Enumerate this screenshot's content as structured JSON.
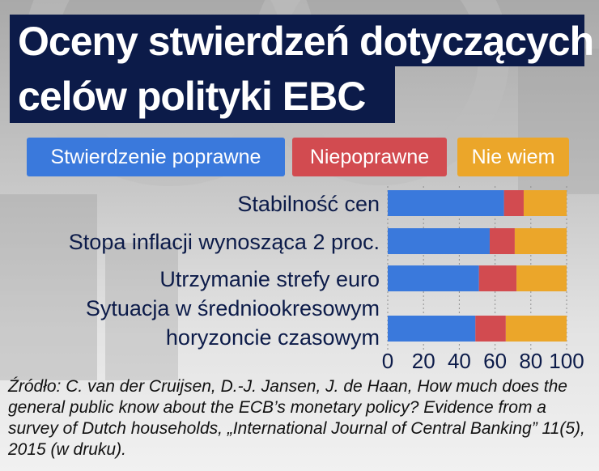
{
  "title": {
    "line1": "Oceny stwierdzeń dotyczących",
    "line2": "celów polityki EBC"
  },
  "colors": {
    "correct": "#3a79dc",
    "incorrect": "#d24b50",
    "dont_know": "#eba62a",
    "title_bg": "#0c1b49",
    "text": "#0c1b49",
    "grid": "#8f8f8f"
  },
  "legend": [
    {
      "label": "Stwierdzenie poprawne",
      "color": "#3a79dc"
    },
    {
      "label": "Niepoprawne",
      "color": "#d24b50"
    },
    {
      "label": "Nie wiem",
      "color": "#eba62a"
    }
  ],
  "chart_data": {
    "type": "bar",
    "orientation": "horizontal",
    "stacked": true,
    "categories": [
      "Stabilność cen",
      "Stopa inflacji wynosząca 2 proc.",
      "Utrzymanie strefy euro",
      "Sytuacja w średniookresowym horyzoncie czasowym"
    ],
    "category_lines": [
      [
        "Stabilność cen"
      ],
      [
        "Stopa inflacji wynosząca 2 proc."
      ],
      [
        "Utrzymanie strefy euro"
      ],
      [
        "Sytuacja w średniookresowym",
        "horyzoncie czasowym"
      ]
    ],
    "series": [
      {
        "name": "Stwierdzenie poprawne",
        "values": [
          65,
          57,
          51,
          49
        ]
      },
      {
        "name": "Niepoprawne",
        "values": [
          11,
          14,
          21,
          17
        ]
      },
      {
        "name": "Nie wiem",
        "values": [
          24,
          29,
          28,
          34
        ]
      }
    ],
    "xlim": [
      0,
      100
    ],
    "xticks": [
      0,
      20,
      40,
      60,
      80,
      100
    ],
    "grid": true
  },
  "source": "Źródło: C. van der Cruijsen, D.-J. Jansen, J. de Haan, How much does the general public know about the ECB’s monetary policy? Evidence from a survey of Dutch households, „International Journal of Central Banking” 11(5), 2015 (w druku)."
}
